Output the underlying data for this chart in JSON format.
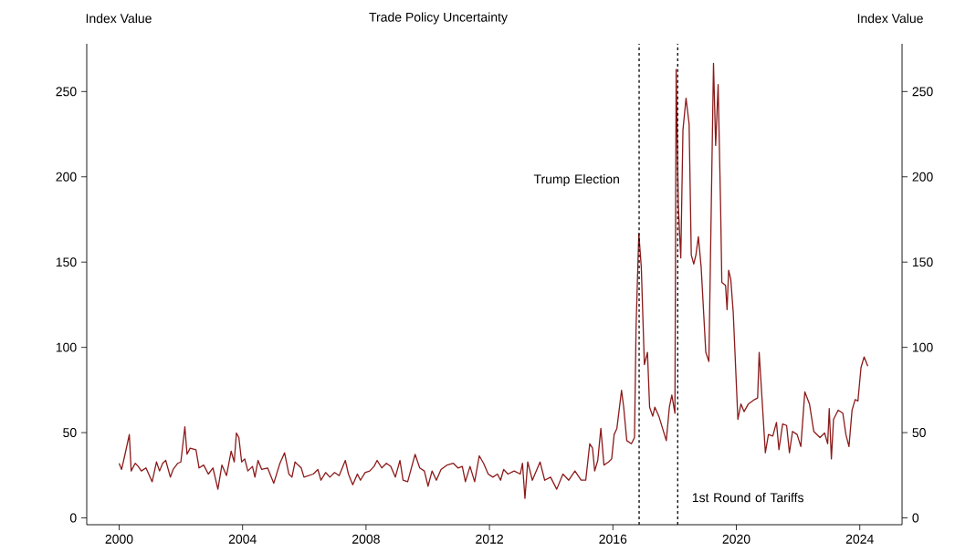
{
  "chart_data": {
    "type": "line",
    "title": "Trade Policy Uncertainty",
    "ylabel": "Index Value",
    "y2label": "Index Value",
    "color": "#8b1a1a",
    "x": [
      2000.0,
      2000.08,
      2000.18,
      2000.33,
      2000.39,
      2000.52,
      2000.62,
      2000.72,
      2000.87,
      2001.07,
      2001.21,
      2001.31,
      2001.41,
      2001.51,
      2001.66,
      2001.75,
      2001.9,
      2002.0,
      2002.13,
      2002.2,
      2002.3,
      2002.49,
      2002.59,
      2002.74,
      2002.89,
      2003.04,
      2003.2,
      2003.33,
      2003.48,
      2003.63,
      2003.73,
      2003.8,
      2003.88,
      2003.97,
      2004.07,
      2004.17,
      2004.32,
      2004.4,
      2004.5,
      2004.62,
      2004.81,
      2005.01,
      2005.21,
      2005.36,
      2005.5,
      2005.6,
      2005.7,
      2005.8,
      2005.9,
      2005.99,
      2006.29,
      2006.44,
      2006.54,
      2006.69,
      2006.83,
      2006.98,
      2007.13,
      2007.33,
      2007.43,
      2007.57,
      2007.72,
      2007.82,
      2007.97,
      2008.12,
      2008.26,
      2008.36,
      2008.51,
      2008.66,
      2008.8,
      2008.95,
      2009.1,
      2009.2,
      2009.35,
      2009.59,
      2009.74,
      2009.89,
      2010.01,
      2010.14,
      2010.28,
      2010.43,
      2010.63,
      2010.83,
      2010.98,
      2011.12,
      2011.22,
      2011.37,
      2011.52,
      2011.67,
      2011.81,
      2011.96,
      2012.11,
      2012.26,
      2012.36,
      2012.46,
      2012.6,
      2012.8,
      2013.0,
      2013.07,
      2013.15,
      2013.24,
      2013.39,
      2013.64,
      2013.79,
      2013.98,
      2014.18,
      2014.38,
      2014.57,
      2014.77,
      2014.97,
      2015.12,
      2015.25,
      2015.34,
      2015.41,
      2015.51,
      2015.61,
      2015.71,
      2015.86,
      2015.96,
      2016.04,
      2016.13,
      2016.28,
      2016.35,
      2016.45,
      2016.6,
      2016.7,
      2016.75,
      2016.84,
      2016.92,
      2017.02,
      2017.12,
      2017.19,
      2017.29,
      2017.36,
      2017.49,
      2017.73,
      2017.83,
      2017.91,
      2018.01,
      2018.05,
      2018.12,
      2018.2,
      2018.27,
      2018.37,
      2018.47,
      2018.54,
      2018.62,
      2018.69,
      2018.77,
      2018.86,
      2019.01,
      2019.11,
      2019.26,
      2019.33,
      2019.41,
      2019.49,
      2019.53,
      2019.65,
      2019.7,
      2019.75,
      2019.82,
      2019.9,
      2020.05,
      2020.15,
      2020.25,
      2020.39,
      2020.59,
      2020.69,
      2020.74,
      2020.94,
      2021.04,
      2021.18,
      2021.3,
      2021.38,
      2021.5,
      2021.63,
      2021.72,
      2021.82,
      2021.97,
      2022.09,
      2022.22,
      2022.37,
      2022.51,
      2022.71,
      2022.86,
      2022.96,
      2023.01,
      2023.08,
      2023.15,
      2023.3,
      2023.45,
      2023.55,
      2023.65,
      2023.75,
      2023.85,
      2023.94,
      2024.04,
      2024.14,
      2024.26
    ],
    "values": [
      32,
      28.4,
      36.4,
      48.9,
      27.5,
      32,
      30.2,
      27.5,
      29.3,
      21.2,
      32.8,
      27.5,
      32,
      33.7,
      23.9,
      28.4,
      32,
      32.8,
      53.4,
      37.3,
      40.9,
      40,
      29.3,
      31,
      25.7,
      29.3,
      16.8,
      31,
      24.8,
      39.1,
      32.8,
      49.8,
      47.1,
      32.8,
      34.6,
      27.5,
      30.2,
      23.9,
      33.7,
      28.4,
      29.3,
      20.3,
      32,
      38.2,
      25.7,
      23.9,
      32.8,
      31,
      29.3,
      23.9,
      25.7,
      28.4,
      22.1,
      26.6,
      23.9,
      26.6,
      24.8,
      33.7,
      25.7,
      19.4,
      25.7,
      22.1,
      26.6,
      27.5,
      30.2,
      33.7,
      29.3,
      32,
      30.2,
      23.9,
      33.7,
      22.1,
      21.2,
      37.3,
      29.3,
      27.5,
      18.6,
      27.5,
      22.1,
      28.4,
      31,
      32,
      29.3,
      30.2,
      21.2,
      30.2,
      21.2,
      36.4,
      32,
      25.7,
      23.9,
      25.7,
      22.1,
      28.4,
      25.7,
      27.5,
      25.7,
      32,
      11.4,
      32.8,
      22.1,
      32.8,
      22.1,
      23.9,
      16.8,
      25.7,
      22.1,
      27.5,
      22.1,
      22.1,
      43.5,
      40.9,
      27.5,
      33.7,
      52.5,
      31,
      32.8,
      34.6,
      48.9,
      52.5,
      74.8,
      64.9,
      45.3,
      43.5,
      47.1,
      111.3,
      166.7,
      147.1,
      89.9,
      97.1,
      64.9,
      59.6,
      64.9,
      59.6,
      45.3,
      64.9,
      72.1,
      61.4,
      263,
      182.7,
      152.4,
      227.4,
      246.1,
      230.9,
      154.2,
      148.8,
      154.2,
      164.9,
      147.1,
      97.1,
      91.7,
      266.6,
      218.4,
      254.1,
      182.7,
      138.1,
      136.3,
      122.1,
      145.2,
      139.9,
      120.3,
      57.8,
      66.8,
      62.3,
      66.8,
      69.4,
      70.3,
      97.1,
      38.2,
      48.9,
      48,
      56,
      40,
      55.1,
      54.2,
      38.2,
      50.7,
      48.9,
      41.8,
      73.9,
      66.8,
      50.7,
      47.1,
      49.8,
      43.5,
      64.1,
      34.6,
      57.8,
      63.2,
      61.4,
      48.9,
      41.8,
      63.2,
      69.4,
      68.5,
      88.2,
      94.4,
      89
    ],
    "xlim": [
      1998.95,
      2025.37
    ],
    "ylim": [
      -4,
      278
    ],
    "y2lim": [
      -4,
      278
    ],
    "xticks": [
      2000,
      2004,
      2008,
      2012,
      2016,
      2020,
      2024
    ],
    "yticks": [
      0,
      50,
      100,
      150,
      200,
      250
    ],
    "y2ticks": [
      0,
      50,
      100,
      150,
      200,
      250
    ],
    "ref_lines": [
      {
        "axis": "x",
        "value": 2016.85,
        "label": "Trump Election",
        "color": "#000000",
        "line_style": "dashed"
      },
      {
        "axis": "x",
        "value": 2018.1,
        "label": "1st Round of Tariffs",
        "color": "#000000",
        "line_style": "dashed"
      }
    ]
  }
}
